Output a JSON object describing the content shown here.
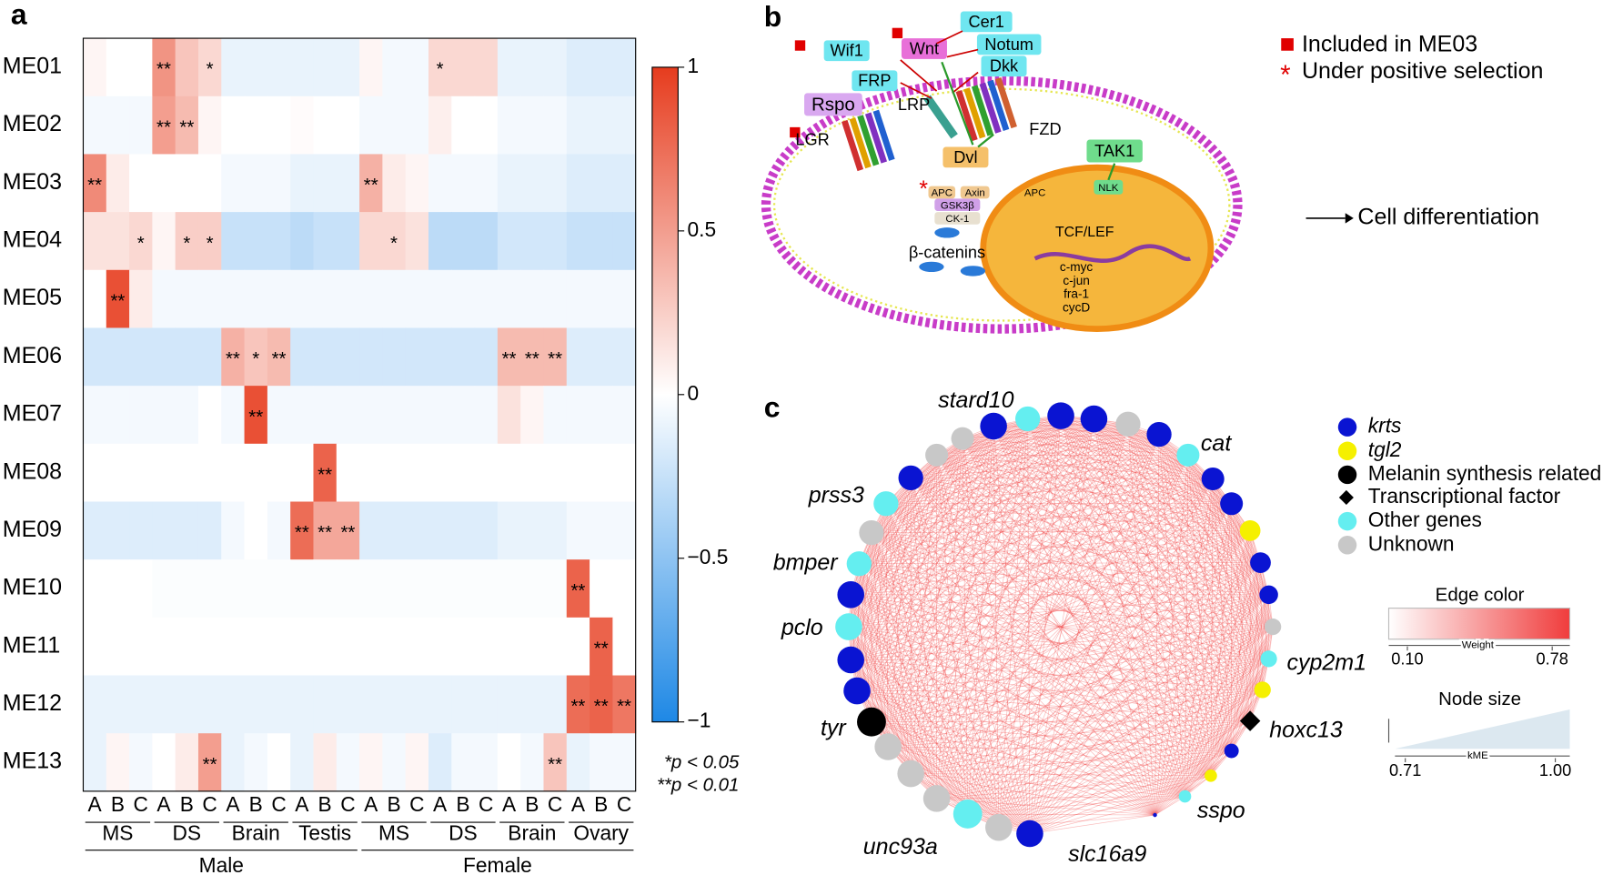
{
  "panel_a": {
    "label": "a",
    "rows": [
      "ME01",
      "ME02",
      "ME03",
      "ME04",
      "ME05",
      "ME06",
      "ME07",
      "ME08",
      "ME09",
      "ME10",
      "ME11",
      "ME12",
      "ME13"
    ],
    "columns": [
      "A",
      "B",
      "C",
      "A",
      "B",
      "C",
      "A",
      "B",
      "C",
      "A",
      "B",
      "C",
      "A",
      "B",
      "C",
      "A",
      "B",
      "C",
      "A",
      "B",
      "C",
      "A",
      "B",
      "C"
    ],
    "tissues": [
      "MS",
      "DS",
      "Brain",
      "Testis",
      "MS",
      "DS",
      "Brain",
      "Ovary"
    ],
    "sexes": [
      "Male",
      "Female"
    ],
    "values": [
      [
        0.05,
        0,
        0,
        0.55,
        0.3,
        0.2,
        -0.1,
        -0.1,
        -0.1,
        -0.1,
        -0.1,
        -0.1,
        0.05,
        -0.05,
        -0.05,
        0.2,
        0.2,
        0.2,
        -0.1,
        -0.1,
        -0.1,
        -0.15,
        -0.15,
        -0.15
      ],
      [
        -0.05,
        -0.05,
        -0.05,
        0.5,
        0.35,
        0.05,
        0,
        0,
        0,
        0.02,
        0,
        0,
        -0.05,
        -0.05,
        -0.05,
        0.08,
        0,
        0,
        -0.05,
        -0.05,
        -0.05,
        -0.1,
        -0.1,
        -0.1
      ],
      [
        0.6,
        0.1,
        0,
        0,
        0,
        0,
        -0.05,
        -0.05,
        -0.05,
        -0.1,
        -0.1,
        -0.1,
        0.4,
        0.1,
        0.05,
        -0.05,
        -0.05,
        -0.05,
        -0.1,
        -0.1,
        -0.1,
        -0.15,
        -0.15,
        -0.15
      ],
      [
        0.15,
        0.15,
        0.2,
        0.05,
        0.25,
        0.25,
        -0.25,
        -0.25,
        -0.25,
        -0.3,
        -0.25,
        -0.25,
        0.2,
        0.2,
        0.15,
        -0.3,
        -0.3,
        -0.3,
        -0.2,
        -0.2,
        -0.2,
        -0.25,
        -0.25,
        -0.25
      ],
      [
        0,
        0.9,
        0.1,
        -0.05,
        -0.05,
        -0.05,
        -0.05,
        -0.05,
        -0.05,
        -0.05,
        -0.05,
        -0.05,
        -0.05,
        -0.05,
        -0.05,
        -0.05,
        -0.05,
        -0.05,
        -0.05,
        -0.05,
        -0.05,
        -0.05,
        -0.05,
        -0.05
      ],
      [
        -0.2,
        -0.2,
        -0.2,
        -0.2,
        -0.2,
        -0.2,
        0.4,
        0.3,
        0.35,
        -0.2,
        -0.2,
        -0.2,
        -0.2,
        -0.2,
        -0.2,
        -0.2,
        -0.2,
        -0.2,
        0.35,
        0.35,
        0.35,
        -0.15,
        -0.15,
        -0.15
      ],
      [
        -0.05,
        -0.05,
        -0.05,
        -0.05,
        -0.05,
        0,
        -0.05,
        0.9,
        -0.05,
        -0.05,
        -0.05,
        -0.05,
        -0.05,
        -0.05,
        -0.05,
        -0.05,
        -0.05,
        -0.05,
        0.15,
        0.05,
        -0.05,
        -0.05,
        -0.05,
        -0.05
      ],
      [
        0,
        0,
        0,
        0,
        0,
        0,
        0,
        0,
        0,
        0,
        0.8,
        0,
        0,
        0,
        0,
        0,
        0,
        0,
        0,
        0,
        0,
        0,
        0,
        0
      ],
      [
        -0.15,
        -0.15,
        -0.15,
        -0.15,
        -0.15,
        -0.15,
        -0.05,
        0,
        -0.05,
        0.75,
        0.45,
        0.45,
        -0.15,
        -0.15,
        -0.15,
        -0.15,
        -0.15,
        -0.15,
        -0.1,
        -0.1,
        -0.1,
        -0.05,
        -0.05,
        -0.05
      ],
      [
        0,
        0,
        0,
        -0.02,
        -0.02,
        -0.02,
        -0.02,
        -0.02,
        -0.02,
        -0.02,
        -0.02,
        -0.02,
        -0.02,
        -0.02,
        -0.02,
        -0.02,
        -0.02,
        -0.02,
        -0.02,
        -0.02,
        -0.02,
        0.8,
        0,
        0
      ],
      [
        0,
        0,
        0,
        0,
        0,
        0,
        0,
        0,
        0,
        0,
        0,
        0,
        0,
        0,
        0,
        0,
        0,
        0,
        0,
        0,
        0,
        0,
        0.8,
        0
      ],
      [
        -0.1,
        -0.1,
        -0.1,
        -0.1,
        -0.1,
        -0.1,
        -0.1,
        -0.1,
        -0.1,
        -0.1,
        -0.1,
        -0.1,
        -0.1,
        -0.1,
        -0.1,
        -0.1,
        -0.1,
        -0.1,
        -0.1,
        -0.1,
        -0.1,
        0.75,
        0.8,
        0.7
      ],
      [
        -0.1,
        0.05,
        -0.05,
        0,
        0.1,
        0.5,
        -0.1,
        -0.05,
        0,
        -0.1,
        0.1,
        -0.05,
        0.05,
        -0.05,
        0.05,
        -0.15,
        -0.05,
        -0.05,
        0,
        -0.05,
        0.3,
        -0.1,
        -0.05,
        -0.05
      ]
    ],
    "annotations": [
      {
        "row": 0,
        "col": 3,
        "text": "**"
      },
      {
        "row": 0,
        "col": 5,
        "text": "*"
      },
      {
        "row": 0,
        "col": 15,
        "text": "*"
      },
      {
        "row": 1,
        "col": 3,
        "text": "**"
      },
      {
        "row": 1,
        "col": 4,
        "text": "**"
      },
      {
        "row": 2,
        "col": 0,
        "text": "**"
      },
      {
        "row": 2,
        "col": 12,
        "text": "**"
      },
      {
        "row": 3,
        "col": 2,
        "text": "*"
      },
      {
        "row": 3,
        "col": 4,
        "text": "*"
      },
      {
        "row": 3,
        "col": 5,
        "text": "*"
      },
      {
        "row": 3,
        "col": 13,
        "text": "*"
      },
      {
        "row": 4,
        "col": 1,
        "text": "**"
      },
      {
        "row": 5,
        "col": 6,
        "text": "**"
      },
      {
        "row": 5,
        "col": 7,
        "text": "*"
      },
      {
        "row": 5,
        "col": 8,
        "text": "**"
      },
      {
        "row": 5,
        "col": 18,
        "text": "**"
      },
      {
        "row": 5,
        "col": 19,
        "text": "**"
      },
      {
        "row": 5,
        "col": 20,
        "text": "**"
      },
      {
        "row": 6,
        "col": 7,
        "text": "**"
      },
      {
        "row": 7,
        "col": 10,
        "text": "**"
      },
      {
        "row": 8,
        "col": 9,
        "text": "**"
      },
      {
        "row": 8,
        "col": 10,
        "text": "**"
      },
      {
        "row": 8,
        "col": 11,
        "text": "**"
      },
      {
        "row": 9,
        "col": 21,
        "text": "**"
      },
      {
        "row": 10,
        "col": 22,
        "text": "**"
      },
      {
        "row": 11,
        "col": 21,
        "text": "**"
      },
      {
        "row": 11,
        "col": 22,
        "text": "**"
      },
      {
        "row": 11,
        "col": 23,
        "text": "**"
      },
      {
        "row": 12,
        "col": 5,
        "text": "**"
      },
      {
        "row": 12,
        "col": 20,
        "text": "**"
      }
    ],
    "colorbar": {
      "lim": [
        -1,
        1
      ],
      "ticks": [
        1,
        0.5,
        0,
        {
          "value": -0.5,
          "label": "−0.5"
        },
        {
          "value": -1,
          "label": "−1"
        }
      ]
    },
    "significance": [
      "*p < 0.05",
      "**p < 0.01"
    ]
  },
  "panel_b": {
    "label": "b",
    "proteins": [
      "Cer1",
      "Wif1",
      "Wnt",
      "Notum",
      "FRP",
      "Dkk",
      "Rspo",
      "LRP",
      "LGR",
      "FZD",
      "Dvl",
      "TAK1",
      "APC",
      "Axin",
      "GSK3β",
      "CK-1",
      "APC",
      "NLK",
      "TCF/LEF",
      "c-myc",
      "c-jun",
      "fra-1",
      "cycD",
      "β-catenins"
    ],
    "outcome": "Cell differentiation",
    "selection_mark": "*",
    "legend": [
      "Included in ME03",
      "Under positive selection"
    ]
  },
  "panel_c": {
    "label": "c",
    "genes": [
      "stard10",
      "cat",
      "prss3",
      "bmper",
      "pclo",
      "tyr",
      "unc93a",
      "slc16a9",
      "sspo",
      "hoxc13",
      "cyp2m1"
    ],
    "legend": [
      "krts",
      "tgl2",
      "Melanin synthesis related",
      "Transcriptional factor",
      "Other genes",
      "Unknown"
    ],
    "edge_color": {
      "title": "Edge color",
      "axis": "Weight",
      "ticks": [
        {
          "value": 0.1,
          "label": "0.10"
        },
        0.78
      ]
    },
    "node_size": {
      "title": "Node size",
      "axis": "kME",
      "ticks": [
        0.71,
        {
          "value": 1,
          "label": "1.00"
        }
      ]
    }
  }
}
